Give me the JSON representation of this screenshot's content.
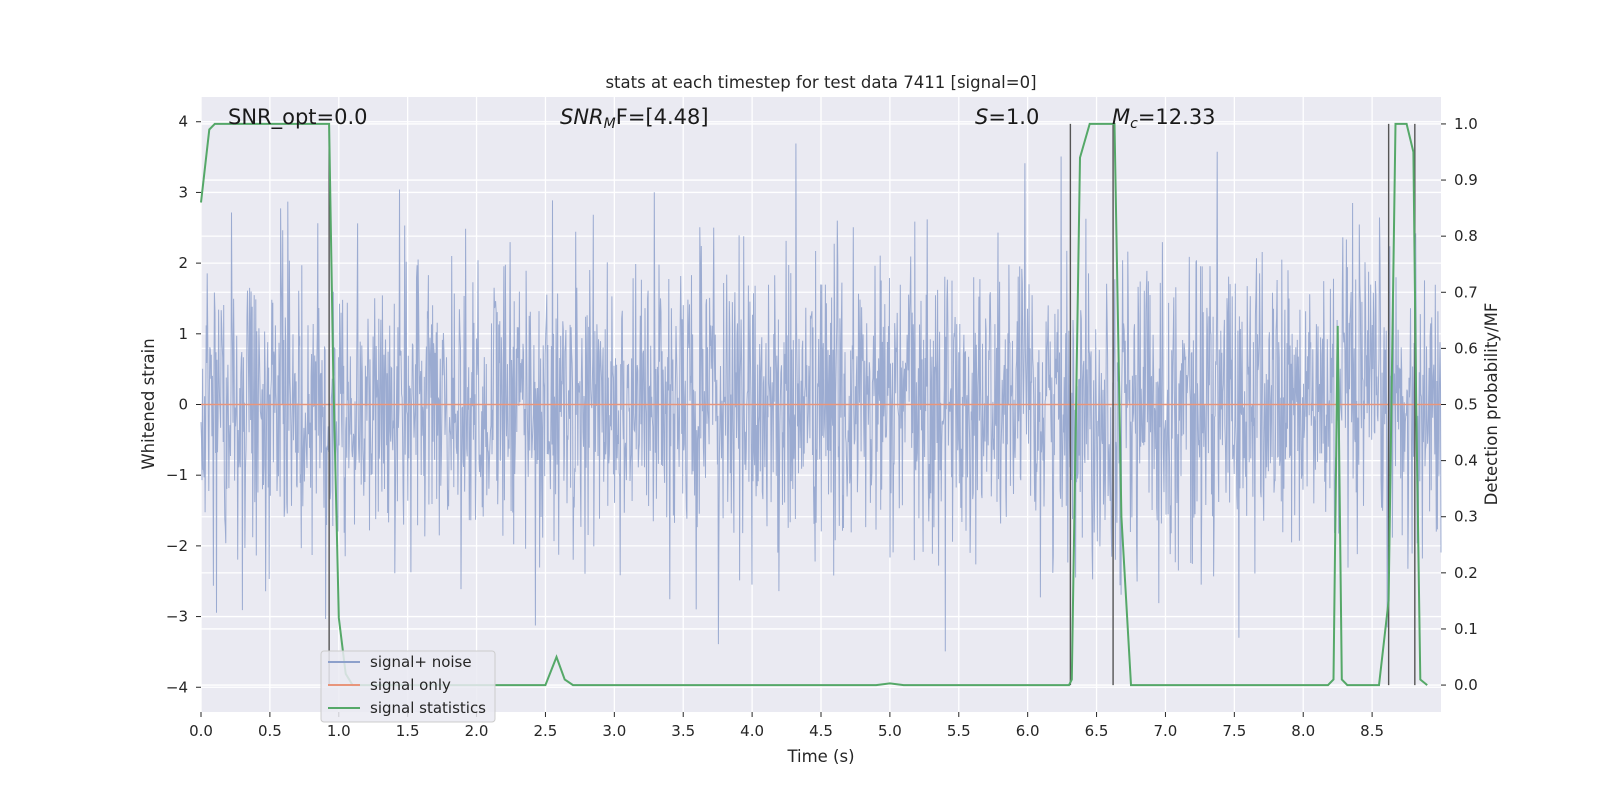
{
  "chart_data": {
    "type": "line",
    "title": "stats at each timestep for test data 7411 [signal=0]",
    "xlabel": "Time (s)",
    "ylabel": "Whitened strain",
    "y2label": "Detection probability/MF",
    "xlim": [
      0,
      9
    ],
    "ylim": [
      -4.35,
      4.35
    ],
    "y2lim": [
      -0.048,
      1.048
    ],
    "xticks": [
      "0.0",
      "0.5",
      "1.0",
      "1.5",
      "2.0",
      "2.5",
      "3.0",
      "3.5",
      "4.0",
      "4.5",
      "5.0",
      "5.5",
      "6.0",
      "6.5",
      "7.0",
      "7.5",
      "8.0",
      "8.5"
    ],
    "yticks": [
      "4",
      "3",
      "2",
      "1",
      "0",
      "−1",
      "−2",
      "−3",
      "−4"
    ],
    "y2ticks": [
      "1.0",
      "0.9",
      "0.8",
      "0.7",
      "0.6",
      "0.5",
      "0.4",
      "0.3",
      "0.2",
      "0.1",
      "0.0"
    ],
    "annotations": [
      {
        "id": "snr-opt",
        "text": "SNR_opt=0.0"
      },
      {
        "id": "snr-mf",
        "text": "SNR_MF=[4.48]",
        "base": "SNR",
        "sub": "M",
        "rest": "F=[4.48]"
      },
      {
        "id": "s",
        "text": "S=1.0",
        "base": "S",
        "rest": "=1.0"
      },
      {
        "id": "mc",
        "text": "M_c=12.33",
        "base": "M",
        "sub": "c",
        "rest": "=12.33"
      }
    ],
    "legend": {
      "position": "lower-left",
      "entries": [
        {
          "label": "signal+ noise",
          "color": "#8da0cb"
        },
        {
          "label": "signal only",
          "color": "#e8957b"
        },
        {
          "label": "signal statistics",
          "color": "#55a868"
        }
      ]
    },
    "series": [
      {
        "name": "signal+ noise",
        "axis": "left",
        "color": "#8da0cb",
        "kind": "noise",
        "envelope_max_abs": 3.9
      },
      {
        "name": "signal only",
        "axis": "left",
        "color": "#e8957b",
        "x": [
          0,
          9
        ],
        "y": [
          0,
          0
        ]
      },
      {
        "name": "signal statistics",
        "axis": "right",
        "color": "#55a868",
        "x": [
          0.0,
          0.06,
          0.1,
          0.15,
          0.2,
          0.3,
          0.4,
          0.5,
          0.6,
          0.7,
          0.8,
          0.9,
          0.93,
          0.96,
          1.0,
          1.05,
          1.1,
          1.2,
          1.4,
          1.6,
          1.8,
          2.0,
          2.2,
          2.4,
          2.5,
          2.58,
          2.64,
          2.7,
          2.8,
          3.0,
          3.5,
          4.0,
          4.5,
          4.9,
          5.0,
          5.1,
          5.5,
          6.0,
          6.3,
          6.32,
          6.38,
          6.45,
          6.5,
          6.55,
          6.6,
          6.63,
          6.68,
          6.75,
          6.8,
          7.0,
          7.5,
          8.0,
          8.18,
          8.22,
          8.25,
          8.28,
          8.32,
          8.4,
          8.55,
          8.62,
          8.67,
          8.7,
          8.75,
          8.8,
          8.82,
          8.85,
          8.9
        ],
        "y": [
          0.86,
          0.99,
          1.0,
          1.0,
          1.0,
          1.0,
          1.0,
          1.0,
          1.0,
          1.0,
          1.0,
          1.0,
          1.0,
          0.55,
          0.12,
          0.02,
          0.0,
          0.0,
          0.0,
          0.0,
          0.0,
          0.0,
          0.0,
          0.0,
          0.0,
          0.05,
          0.01,
          0.0,
          0.0,
          0.0,
          0.0,
          0.0,
          0.0,
          0.0,
          0.003,
          0.0,
          0.0,
          0.0,
          0.0,
          0.01,
          0.94,
          1.0,
          1.0,
          1.0,
          1.0,
          1.0,
          0.3,
          0.0,
          0.0,
          0.0,
          0.0,
          0.0,
          0.0,
          0.01,
          0.64,
          0.01,
          0.0,
          0.0,
          0.0,
          0.15,
          1.0,
          1.0,
          1.0,
          0.95,
          0.5,
          0.01,
          0.0
        ]
      }
    ],
    "vertical_lines_x": [
      0.93,
      6.31,
      6.62,
      8.62,
      8.81
    ],
    "grid": true
  }
}
